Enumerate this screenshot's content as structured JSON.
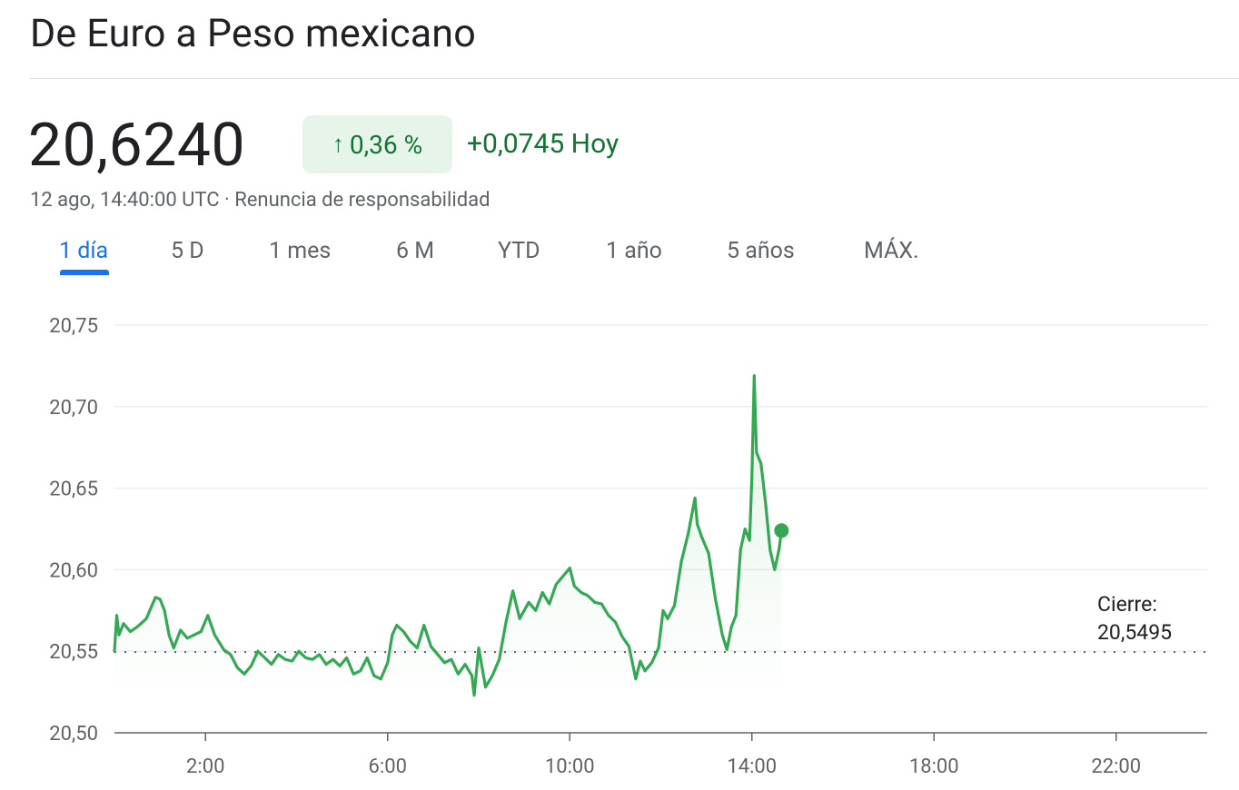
{
  "header": {
    "title": "De Euro a Peso mexicano",
    "price": "20,6240",
    "change_percent": "0,36 %",
    "change_arrow": "↑",
    "change_abs": "+0,0745 Hoy",
    "timestamp": "12 ago, 14:40:00 UTC · Renuncia de responsabilidad"
  },
  "tabs": [
    "1 día",
    "5 D",
    "1 mes",
    "6 M",
    "YTD",
    "1 año",
    "5 años",
    "MÁX."
  ],
  "active_tab": 0,
  "colors": {
    "positive": "#137333",
    "line": "#34a853",
    "accent": "#1a73e8"
  },
  "chart_data": {
    "type": "line",
    "x_unit": "hour",
    "xlim": [
      0.0,
      24.0
    ],
    "ylim": [
      20.5,
      20.75
    ],
    "y_ticks": [
      "20,50",
      "20,55",
      "20,60",
      "20,65",
      "20,70",
      "20,75"
    ],
    "y_tick_values": [
      20.5,
      20.55,
      20.6,
      20.65,
      20.7,
      20.75
    ],
    "x_ticks": [
      "2:00",
      "6:00",
      "10:00",
      "14:00",
      "18:00",
      "22:00"
    ],
    "x_tick_values": [
      2,
      6,
      10,
      14,
      18,
      22
    ],
    "previous_close": 20.5495,
    "close_label": "Cierre:",
    "close_value": "20,5495",
    "grid": true,
    "series": [
      {
        "x": [
          0.0,
          0.05,
          0.1,
          0.2,
          0.35,
          0.5,
          0.7,
          0.9,
          1.0,
          1.1,
          1.2,
          1.3,
          1.45,
          1.6,
          1.75,
          1.9,
          2.05,
          2.2,
          2.4,
          2.55,
          2.7,
          2.85,
          3.0,
          3.15,
          3.3,
          3.45,
          3.6,
          3.75,
          3.9,
          4.05,
          4.2,
          4.35,
          4.5,
          4.65,
          4.8,
          4.95,
          5.1,
          5.25,
          5.4,
          5.55,
          5.7,
          5.85,
          6.0,
          6.1,
          6.2,
          6.35,
          6.5,
          6.65,
          6.8,
          6.95,
          7.1,
          7.25,
          7.4,
          7.55,
          7.7,
          7.85,
          7.9,
          8.0,
          8.15,
          8.3,
          8.45,
          8.6,
          8.75,
          8.9,
          9.0,
          9.1,
          9.25,
          9.4,
          9.55,
          9.7,
          9.85,
          10.0,
          10.1,
          10.25,
          10.4,
          10.55,
          10.7,
          10.85,
          11.0,
          11.15,
          11.3,
          11.45,
          11.55,
          11.65,
          11.8,
          11.95,
          12.05,
          12.15,
          12.3,
          12.45,
          12.6,
          12.75,
          12.8,
          12.9,
          13.05,
          13.2,
          13.35,
          13.45,
          13.55,
          13.65,
          13.75,
          13.85,
          13.95,
          14.0,
          14.05,
          14.1,
          14.2,
          14.3,
          14.4,
          14.5,
          14.6,
          14.65
        ],
        "y": [
          20.55,
          20.572,
          20.56,
          20.567,
          20.562,
          20.565,
          20.57,
          20.583,
          20.582,
          20.575,
          20.56,
          20.552,
          20.563,
          20.558,
          20.56,
          20.562,
          20.572,
          20.56,
          20.551,
          20.548,
          20.54,
          20.536,
          20.541,
          20.55,
          20.546,
          20.542,
          20.548,
          20.545,
          20.544,
          20.55,
          20.546,
          20.545,
          20.548,
          20.542,
          20.545,
          20.541,
          20.546,
          20.536,
          20.538,
          20.546,
          20.535,
          20.533,
          20.543,
          20.56,
          20.566,
          20.562,
          20.556,
          20.552,
          20.566,
          20.553,
          20.548,
          20.543,
          20.545,
          20.536,
          20.542,
          20.535,
          20.523,
          20.552,
          20.528,
          20.535,
          20.545,
          20.568,
          20.587,
          20.57,
          20.575,
          20.58,
          20.575,
          20.586,
          20.579,
          20.591,
          20.596,
          20.601,
          20.59,
          20.586,
          20.584,
          20.58,
          20.579,
          20.572,
          20.568,
          20.559,
          20.553,
          20.533,
          20.544,
          20.538,
          20.543,
          20.552,
          20.575,
          20.57,
          20.578,
          20.605,
          20.622,
          20.644,
          20.628,
          20.62,
          20.61,
          20.582,
          20.56,
          20.551,
          20.565,
          20.572,
          20.612,
          20.625,
          20.618,
          20.658,
          20.719,
          20.672,
          20.665,
          20.641,
          20.612,
          20.6,
          20.613,
          20.624
        ]
      }
    ]
  }
}
